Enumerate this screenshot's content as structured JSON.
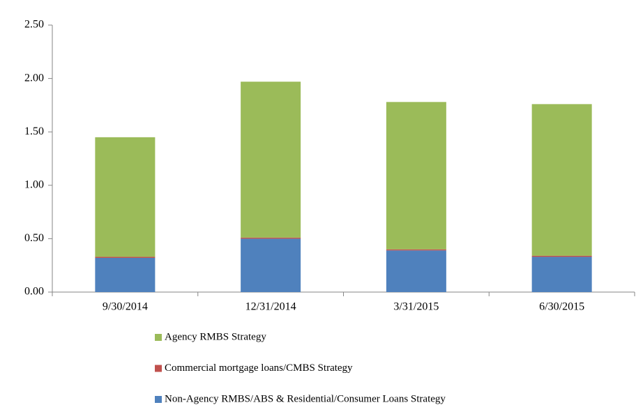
{
  "chart_data": {
    "type": "stacked_bar",
    "categories": [
      "9/30/2014",
      "12/31/2014",
      "3/31/2015",
      "6/30/2015"
    ],
    "series": [
      {
        "name": "Non-Agency RMBS/ABS & Residential/Consumer Loans Strategy",
        "color": "#4f81bd",
        "values": [
          0.32,
          0.5,
          0.39,
          0.33
        ]
      },
      {
        "name": "Commercial mortgage loans/CMBS Strategy",
        "color": "#c0504d",
        "values": [
          0.01,
          0.01,
          0.01,
          0.01
        ]
      },
      {
        "name": "Agency RMBS Strategy",
        "color": "#9bbb59",
        "values": [
          1.12,
          1.46,
          1.38,
          1.42
        ]
      }
    ],
    "ylim": [
      0,
      2.5
    ],
    "yticks": [
      {
        "value": 0,
        "label": "0.00"
      },
      {
        "value": 0.5,
        "label": "0.50"
      },
      {
        "value": 1,
        "label": "1.00"
      },
      {
        "value": 1.5,
        "label": "1.50"
      },
      {
        "value": 2,
        "label": "2.00"
      },
      {
        "value": 2.5,
        "label": "2.50"
      }
    ]
  }
}
